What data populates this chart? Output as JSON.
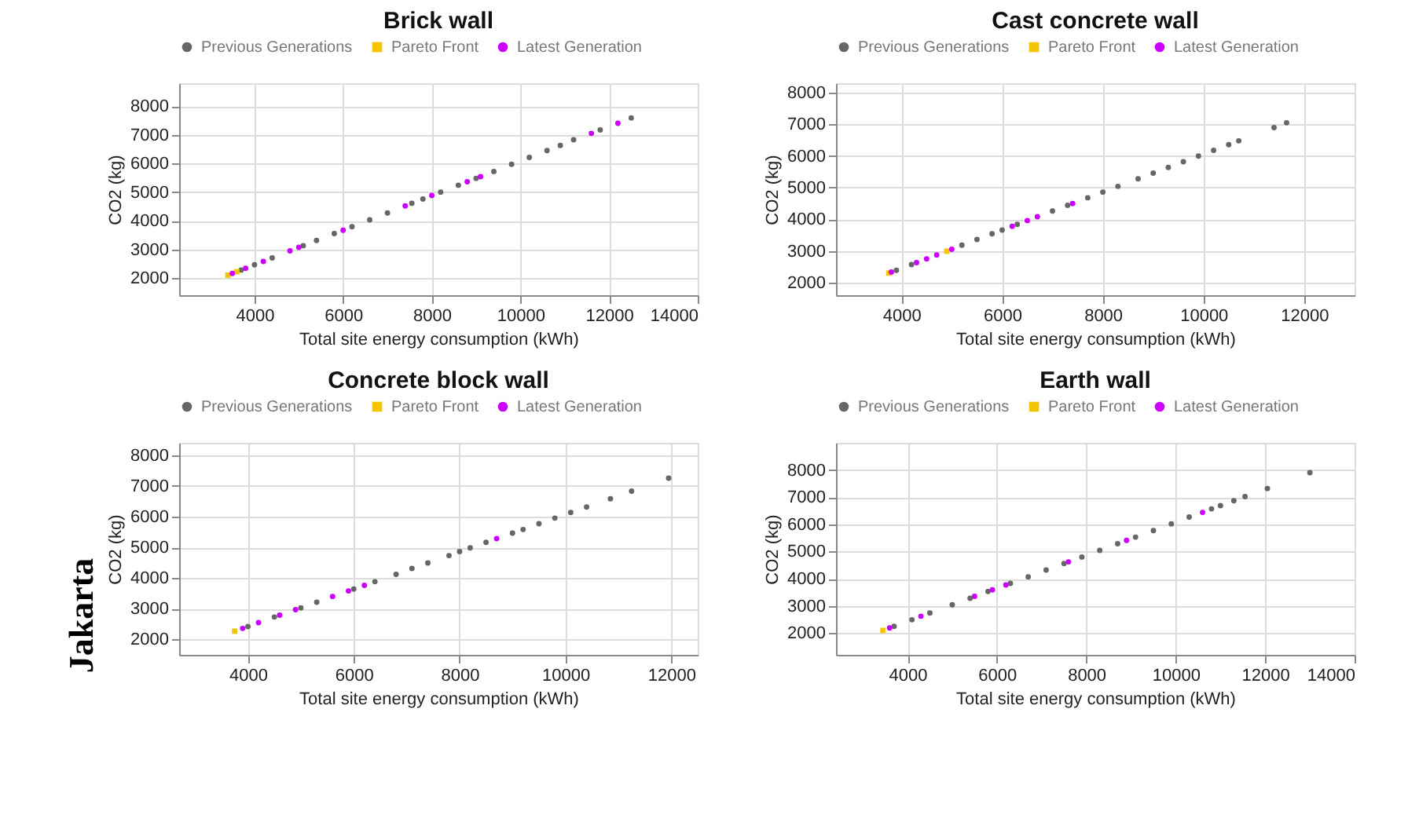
{
  "chart_data": [
    {
      "type": "scatter",
      "title": "Brick wall",
      "xlabel": "Total site energy consumption (kWh)",
      "ylabel": "CO2 (kg)",
      "xlim": [
        2300,
        14000
      ],
      "ylim": [
        1400,
        8800
      ],
      "xticks": [
        4000,
        6000,
        8000,
        10000,
        12000,
        14000
      ],
      "yticks": [
        2000,
        3000,
        4000,
        5000,
        6000,
        7000,
        8000
      ],
      "grid": true,
      "legend": "top",
      "series": [
        {
          "name": "Previous Generations",
          "color": "#666666",
          "marker": "circle",
          "x": [
            3700,
            4000,
            4400,
            5100,
            5400,
            5800,
            6200,
            6600,
            7000,
            7550,
            7800,
            8200,
            8600,
            9000,
            9400,
            9800,
            10200,
            10600,
            10900,
            11200,
            11800,
            12500
          ],
          "values": [
            2280,
            2460,
            2700,
            3130,
            3310,
            3550,
            3790,
            4030,
            4270,
            4610,
            4760,
            5000,
            5240,
            5480,
            5720,
            5970,
            6210,
            6450,
            6630,
            6830,
            7170,
            7590
          ]
        },
        {
          "name": "Pareto Front",
          "color": "#f5c400",
          "marker": "square",
          "x": [
            3400,
            3600
          ],
          "values": [
            2100,
            2220
          ]
        },
        {
          "name": "Latest Generation",
          "color": "#cc00ff",
          "marker": "circle",
          "x": [
            3500,
            3800,
            4200,
            4800,
            5000,
            6000,
            7400,
            8000,
            8800,
            9100,
            11600,
            12200
          ],
          "values": [
            2160,
            2340,
            2580,
            2950,
            3070,
            3670,
            4520,
            4880,
            5360,
            5540,
            7050,
            7400
          ]
        }
      ]
    },
    {
      "type": "scatter",
      "title": "Cast concrete wall",
      "xlabel": "Total site energy consumption (kWh)",
      "ylabel": "CO2 (kg)",
      "xlim": [
        2700,
        13000
      ],
      "ylim": [
        1600,
        8300
      ],
      "xticks": [
        4000,
        6000,
        8000,
        10000,
        12000
      ],
      "yticks": [
        2000,
        3000,
        4000,
        5000,
        6000,
        7000,
        8000
      ],
      "grid": true,
      "legend": "top",
      "series": [
        {
          "name": "Previous Generations",
          "color": "#666666",
          "marker": "circle",
          "x": [
            3900,
            4200,
            5200,
            5500,
            5800,
            6000,
            6300,
            7000,
            7300,
            7700,
            8000,
            8300,
            8700,
            9000,
            9300,
            9600,
            9900,
            10200,
            10500,
            10700,
            11400,
            11650
          ],
          "values": [
            2390,
            2570,
            3180,
            3360,
            3540,
            3660,
            3840,
            4260,
            4440,
            4680,
            4860,
            5040,
            5280,
            5460,
            5640,
            5820,
            6000,
            6180,
            6360,
            6480,
            6900,
            7050
          ]
        },
        {
          "name": "Pareto Front",
          "color": "#f5c400",
          "marker": "square",
          "x": [
            3750,
            4900
          ],
          "values": [
            2300,
            2990
          ]
        },
        {
          "name": "Latest Generation",
          "color": "#cc00ff",
          "marker": "circle",
          "x": [
            3800,
            4300,
            4500,
            4700,
            5000,
            6200,
            6500,
            6700,
            7400
          ],
          "values": [
            2330,
            2630,
            2750,
            2870,
            3050,
            3780,
            3960,
            4080,
            4500
          ]
        }
      ]
    },
    {
      "type": "scatter",
      "title": "Concrete block wall",
      "xlabel": "Total site energy consumption (kWh)",
      "ylabel": "CO2 (kg)",
      "xlim": [
        2700,
        12500
      ],
      "ylim": [
        1500,
        8400
      ],
      "xticks": [
        4000,
        6000,
        8000,
        10000,
        12000
      ],
      "yticks": [
        2000,
        3000,
        4000,
        5000,
        6000,
        7000,
        8000
      ],
      "grid": true,
      "legend": "top",
      "annotations": [
        "Jakarta"
      ],
      "series": [
        {
          "name": "Previous Generations",
          "color": "#666666",
          "marker": "circle",
          "x": [
            4000,
            4500,
            5000,
            5300,
            6000,
            6400,
            6800,
            7100,
            7400,
            7800,
            8000,
            8200,
            8500,
            9000,
            9200,
            9500,
            9800,
            10100,
            10400,
            10850,
            11250,
            11950
          ],
          "values": [
            2420,
            2730,
            3030,
            3210,
            3640,
            3880,
            4120,
            4310,
            4490,
            4730,
            4860,
            4980,
            5160,
            5460,
            5580,
            5770,
            5950,
            6130,
            6310,
            6580,
            6830,
            7250
          ]
        },
        {
          "name": "Pareto Front",
          "color": "#f5c400",
          "marker": "square",
          "x": [
            3750
          ],
          "values": [
            2270
          ]
        },
        {
          "name": "Latest Generation",
          "color": "#cc00ff",
          "marker": "circle",
          "x": [
            3900,
            4200,
            4600,
            4900,
            5600,
            5900,
            6200,
            8700
          ],
          "values": [
            2360,
            2550,
            2790,
            2970,
            3400,
            3580,
            3760,
            5280
          ]
        }
      ]
    },
    {
      "type": "scatter",
      "title": "Earth wall",
      "xlabel": "Total site energy consumption (kWh)",
      "ylabel": "CO2 (kg)",
      "xlim": [
        2400,
        14000
      ],
      "ylim": [
        1200,
        9000
      ],
      "xticks": [
        4000,
        6000,
        8000,
        10000,
        12000,
        14000
      ],
      "yticks": [
        2000,
        3000,
        4000,
        5000,
        6000,
        7000,
        8000
      ],
      "grid": true,
      "legend": "top",
      "series": [
        {
          "name": "Previous Generations",
          "color": "#666666",
          "marker": "circle",
          "x": [
            3700,
            4100,
            4500,
            5000,
            5400,
            5800,
            6300,
            6700,
            7100,
            7500,
            7900,
            8300,
            8700,
            9100,
            9500,
            9900,
            10300,
            10800,
            11000,
            11300,
            11550,
            12050,
            13000
          ],
          "values": [
            2250,
            2490,
            2740,
            3040,
            3280,
            3530,
            3830,
            4070,
            4320,
            4560,
            4800,
            5040,
            5290,
            5530,
            5770,
            6020,
            6270,
            6570,
            6690,
            6870,
            7020,
            7320,
            7900
          ]
        },
        {
          "name": "Pareto Front",
          "color": "#f5c400",
          "marker": "square",
          "x": [
            3450
          ],
          "values": [
            2100
          ]
        },
        {
          "name": "Latest Generation",
          "color": "#cc00ff",
          "marker": "circle",
          "x": [
            3600,
            4300,
            5500,
            5900,
            6200,
            7600,
            8900,
            10600
          ],
          "values": [
            2190,
            2620,
            3350,
            3590,
            3770,
            4620,
            5410,
            6440
          ]
        }
      ]
    }
  ]
}
